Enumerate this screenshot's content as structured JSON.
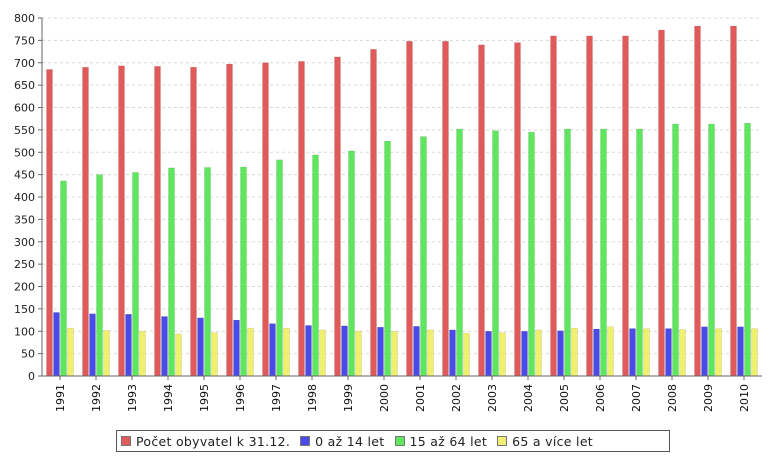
{
  "chart_data": {
    "type": "bar",
    "categories": [
      "1991",
      "1992",
      "1993",
      "1994",
      "1995",
      "1996",
      "1997",
      "1998",
      "1999",
      "2000",
      "2001",
      "2002",
      "2003",
      "2004",
      "2005",
      "2006",
      "2007",
      "2008",
      "2009",
      "2010"
    ],
    "series": [
      {
        "name": "Počet obyvatel k 31.12.",
        "color": "#e05a5a",
        "values": [
          685,
          690,
          693,
          692,
          690,
          697,
          700,
          703,
          713,
          730,
          748,
          748,
          740,
          745,
          760,
          760,
          760,
          773,
          782,
          782
        ]
      },
      {
        "name": "0 až 14 let",
        "color": "#4a4ae6",
        "values": [
          142,
          139,
          138,
          133,
          130,
          125,
          117,
          113,
          112,
          109,
          111,
          103,
          100,
          100,
          101,
          105,
          106,
          106,
          110,
          110
        ]
      },
      {
        "name": "15 až 64 let",
        "color": "#5ee65e",
        "values": [
          436,
          450,
          455,
          465,
          466,
          467,
          483,
          494,
          503,
          525,
          535,
          552,
          548,
          545,
          552,
          552,
          552,
          563,
          563,
          565
        ]
      },
      {
        "name": "65 a více let",
        "color": "#f0f070",
        "values": [
          107,
          102,
          100,
          94,
          97,
          107,
          107,
          103,
          100,
          100,
          103,
          96,
          97,
          103,
          107,
          110,
          106,
          104,
          106,
          106
        ]
      }
    ],
    "ylim": [
      0,
      800
    ],
    "yticks": [
      0,
      50,
      100,
      150,
      200,
      250,
      300,
      350,
      400,
      450,
      500,
      550,
      600,
      650,
      700,
      750,
      800
    ],
    "grid": true,
    "legend_position": "bottom"
  }
}
